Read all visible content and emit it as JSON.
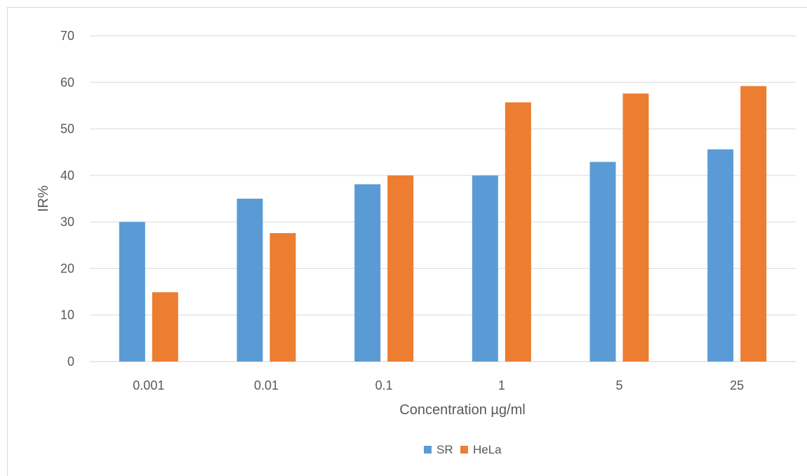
{
  "chart_data": {
    "type": "bar",
    "title": "",
    "xlabel": "Concentration µg/ml",
    "ylabel": "IR%",
    "categories": [
      "0.001",
      "0.01",
      "0.1",
      "1",
      "5",
      "25"
    ],
    "ylim": [
      0,
      70
    ],
    "yticks": [
      0,
      10,
      20,
      30,
      40,
      50,
      60,
      70
    ],
    "grid": true,
    "legend_position": "bottom",
    "series": [
      {
        "name": "SR",
        "color": "#5b9bd5",
        "values": [
          30,
          35,
          38.1,
          40,
          42.9,
          45.6
        ]
      },
      {
        "name": "HeLa",
        "color": "#ed7d31",
        "values": [
          14.9,
          27.6,
          40,
          55.7,
          57.6,
          59.2
        ]
      }
    ]
  }
}
